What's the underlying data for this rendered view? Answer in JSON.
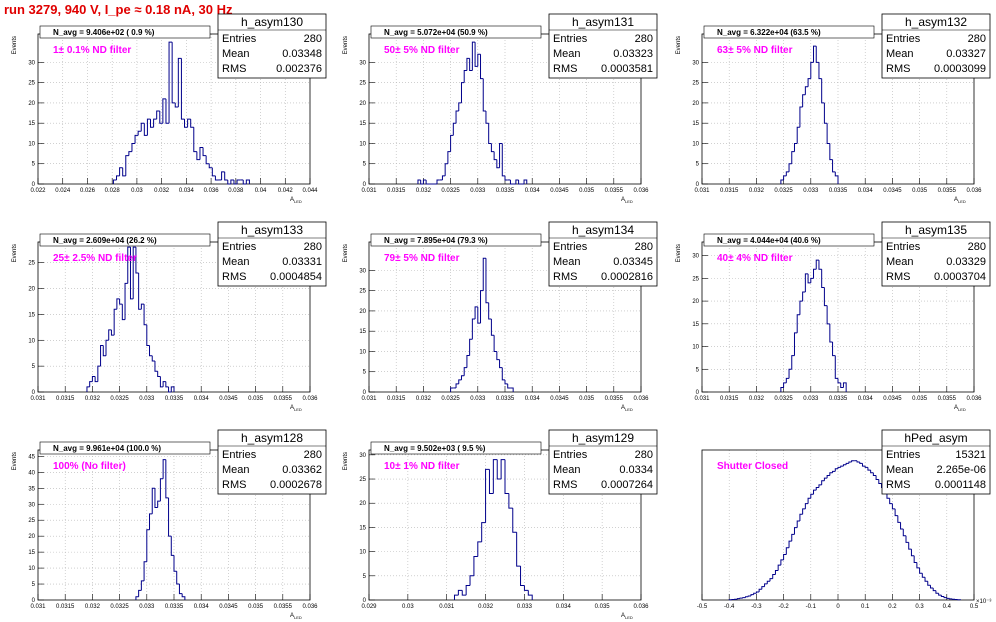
{
  "run_title": "run 3279,   940 V, I_pe ≈ 0.18 nA,  30 Hz",
  "colors": {
    "line": "#00008b",
    "note": "#ff00ff",
    "title": "#e00000",
    "grid": "#b4b4b4"
  },
  "chart_data": [
    {
      "type": "bar",
      "name": "h_asym130",
      "stats": {
        "entries_label": "Entries",
        "entries": "280",
        "mean_label": "Mean",
        "mean": "0.03348",
        "rms_label": "RMS",
        "rms": "0.002376"
      },
      "navg": "N_avg = 9.406e+02 ( 0.9 %)",
      "note": "1± 0.1% ND filter",
      "xlabel": "A_LED",
      "ylabel": "Events",
      "xlim": [
        0.022,
        0.044
      ],
      "ylim": [
        0,
        37
      ],
      "xticks": [
        "0.022",
        "0.024",
        "0.026",
        "0.028",
        "0.03",
        "0.032",
        "0.034",
        "0.036",
        "0.038",
        "0.04",
        "0.042",
        "0.044"
      ],
      "yticks": [
        0,
        5,
        10,
        15,
        20,
        25,
        30
      ],
      "bins": {
        "start": 0.0281,
        "width": 0.00025,
        "values": [
          1,
          2,
          4,
          2,
          7,
          8,
          10,
          12,
          13,
          15,
          12,
          16,
          14,
          16,
          18,
          15,
          21,
          15,
          35,
          20,
          19,
          31,
          16,
          14,
          16,
          14,
          8,
          6,
          9,
          7,
          5,
          4,
          2,
          1,
          1,
          3,
          1,
          0,
          1,
          0,
          1,
          1,
          0,
          1
        ]
      }
    },
    {
      "type": "bar",
      "name": "h_asym131",
      "stats": {
        "entries_label": "Entries",
        "entries": "280",
        "mean_label": "Mean",
        "mean": "0.03323",
        "rms_label": "RMS",
        "rms": "0.0003581"
      },
      "navg": "N_avg = 5.072e+04 (50.9 %)",
      "note": "50± 5% ND filter",
      "xlabel": "A_LED",
      "ylabel": "Events",
      "xlim": [
        0.031,
        0.036
      ],
      "ylim": [
        0,
        37
      ],
      "xticks": [
        "0.031",
        "0.0315",
        "0.032",
        "0.0325",
        "0.033",
        "0.0335",
        "0.034",
        "0.0345",
        "0.035",
        "0.0355",
        "0.036"
      ],
      "yticks": [
        0,
        5,
        10,
        15,
        20,
        25,
        30
      ],
      "bins": {
        "start": 0.0319,
        "width": 5e-05,
        "values": [
          1,
          0,
          1,
          0,
          0,
          0,
          0,
          1,
          1,
          2,
          5,
          8,
          12,
          15,
          18,
          20,
          25,
          28,
          31,
          28,
          35,
          29,
          32,
          26,
          18,
          15,
          10,
          8,
          6,
          4,
          10,
          2,
          1,
          1,
          0,
          0,
          1,
          0,
          0,
          1
        ]
      }
    },
    {
      "type": "bar",
      "name": "h_asym132",
      "stats": {
        "entries_label": "Entries",
        "entries": "280",
        "mean_label": "Mean",
        "mean": "0.03327",
        "rms_label": "RMS",
        "rms": "0.0003099"
      },
      "navg": "N_avg = 6.322e+04 (63.5 %)",
      "note": "63± 5% ND filter",
      "xlabel": "A_LED",
      "ylabel": "Events",
      "xlim": [
        0.031,
        0.036
      ],
      "ylim": [
        0,
        37
      ],
      "xticks": [
        "0.031",
        "0.0315",
        "0.032",
        "0.0325",
        "0.033",
        "0.0335",
        "0.034",
        "0.0345",
        "0.035",
        "0.0355",
        "0.036"
      ],
      "yticks": [
        0,
        5,
        10,
        15,
        20,
        25,
        30
      ],
      "bins": {
        "start": 0.03245,
        "width": 5e-05,
        "values": [
          1,
          2,
          3,
          5,
          8,
          10,
          14,
          19,
          22,
          24,
          26,
          30,
          34,
          30,
          26,
          20,
          15,
          10,
          6,
          3,
          2
        ]
      }
    },
    {
      "type": "bar",
      "name": "h_asym133",
      "stats": {
        "entries_label": "Entries",
        "entries": "280",
        "mean_label": "Mean",
        "mean": "0.03331",
        "rms_label": "RMS",
        "rms": "0.0004854"
      },
      "navg": "N_avg = 2.609e+04 (26.2 %)",
      "note": "25± 2.5% ND filter",
      "xlabel": "A_LED",
      "ylabel": "Events",
      "xlim": [
        0.031,
        0.036
      ],
      "ylim": [
        0,
        29
      ],
      "xticks": [
        "0.031",
        "0.0315",
        "0.032",
        "0.0325",
        "0.033",
        "0.0335",
        "0.034",
        "0.0345",
        "0.035",
        "0.0355",
        "0.036"
      ],
      "yticks": [
        0,
        5,
        10,
        15,
        20,
        25
      ],
      "bins": {
        "start": 0.0319,
        "width": 5e-05,
        "values": [
          1,
          2,
          3,
          2,
          5,
          9,
          7,
          10,
          12,
          11,
          16,
          18,
          17,
          14,
          21,
          28,
          18,
          28,
          23,
          16,
          17,
          13,
          9,
          7,
          6,
          4,
          3,
          1,
          2,
          1,
          0,
          1
        ]
      }
    },
    {
      "type": "bar",
      "name": "h_asym134",
      "stats": {
        "entries_label": "Entries",
        "entries": "280",
        "mean_label": "Mean",
        "mean": "0.03345",
        "rms_label": "RMS",
        "rms": "0.0002816"
      },
      "navg": "N_avg = 7.895e+04 (79.3 %)",
      "note": "79± 5% ND filter",
      "xlabel": "A_LED",
      "ylabel": "Events",
      "xlim": [
        0.031,
        0.036
      ],
      "ylim": [
        0,
        37
      ],
      "xticks": [
        "0.031",
        "0.0315",
        "0.032",
        "0.0325",
        "0.033",
        "0.0335",
        "0.034",
        "0.0345",
        "0.035",
        "0.0355",
        "0.036"
      ],
      "yticks": [
        0,
        5,
        10,
        15,
        20,
        25,
        30
      ],
      "bins": {
        "start": 0.0325,
        "width": 5e-05,
        "values": [
          1,
          1,
          2,
          3,
          4,
          6,
          9,
          13,
          18,
          21,
          17,
          25,
          33,
          22,
          18,
          14,
          10,
          8,
          6,
          3,
          2,
          1,
          1
        ]
      }
    },
    {
      "type": "bar",
      "name": "h_asym135",
      "stats": {
        "entries_label": "Entries",
        "entries": "280",
        "mean_label": "Mean",
        "mean": "0.03329",
        "rms_label": "RMS",
        "rms": "0.0003704"
      },
      "navg": "N_avg = 4.044e+04 (40.6 %)",
      "note": "40± 4% ND filter",
      "xlabel": "A_LED",
      "ylabel": "Events",
      "xlim": [
        0.031,
        0.036
      ],
      "ylim": [
        0,
        33
      ],
      "xticks": [
        "0.031",
        "0.0315",
        "0.032",
        "0.0325",
        "0.033",
        "0.0335",
        "0.034",
        "0.0345",
        "0.035",
        "0.0355",
        "0.036"
      ],
      "yticks": [
        0,
        5,
        10,
        15,
        20,
        25,
        30
      ],
      "bins": {
        "start": 0.03245,
        "width": 5e-05,
        "values": [
          1,
          2,
          3,
          5,
          8,
          13,
          17,
          20,
          22,
          26,
          24,
          25,
          27,
          29,
          27,
          23,
          19,
          15,
          11,
          8,
          3,
          2,
          1,
          2
        ]
      }
    },
    {
      "type": "bar",
      "name": "h_asym128",
      "stats": {
        "entries_label": "Entries",
        "entries": "280",
        "mean_label": "Mean",
        "mean": "0.03362",
        "rms_label": "RMS",
        "rms": "0.0002678"
      },
      "navg": "N_avg = 9.961e+04 (100.0 %)",
      "note": "100% (No filter)",
      "xlabel": "A_LED",
      "ylabel": "Events",
      "xlim": [
        0.031,
        0.036
      ],
      "ylim": [
        0,
        47
      ],
      "xticks": [
        "0.031",
        "0.0315",
        "0.032",
        "0.0325",
        "0.033",
        "0.0335",
        "0.034",
        "0.0345",
        "0.035",
        "0.0355",
        "0.036"
      ],
      "yticks": [
        0,
        5,
        10,
        15,
        20,
        25,
        30,
        35,
        40,
        45
      ],
      "bins": {
        "start": 0.0328,
        "width": 5e-05,
        "values": [
          1,
          3,
          6,
          12,
          22,
          27,
          35,
          29,
          31,
          38,
          44,
          32,
          20,
          14,
          9,
          5,
          2,
          1
        ]
      }
    },
    {
      "type": "bar",
      "name": "h_asym129",
      "stats": {
        "entries_label": "Entries",
        "entries": "280",
        "mean_label": "Mean",
        "mean": "0.0334",
        "rms_label": "RMS",
        "rms": "0.0007264"
      },
      "navg": "N_avg = 9.502e+03 ( 9.5 %)",
      "note": "10± 1% ND filter",
      "xlabel": "A_LED",
      "ylabel": "Events",
      "xlim": [
        0.029,
        0.036
      ],
      "ylim": [
        0,
        31
      ],
      "xticks": [
        "0.029",
        "0.03",
        "0.031",
        "0.032",
        "0.033",
        "0.034",
        "0.035",
        "0.036"
      ],
      "yticks": [
        0,
        5,
        10,
        15,
        20,
        25,
        30
      ],
      "bins": {
        "start": 0.0312,
        "width": 0.0001,
        "values": [
          1,
          2,
          1,
          3,
          5,
          9,
          12,
          16,
          27,
          22,
          29,
          25,
          29,
          22,
          19,
          14,
          7,
          3,
          2,
          1
        ]
      }
    },
    {
      "type": "bar",
      "name": "hPed_asym",
      "stats": {
        "entries_label": "Entries",
        "entries": "15321",
        "mean_label": "Mean",
        "mean": "2.265e-06",
        "rms_label": "RMS",
        "rms": "0.0001148"
      },
      "navg": "",
      "note": "Shutter Closed",
      "xlabel": "",
      "ylabel": "",
      "exponent": "×10⁻³",
      "xlim": [
        -0.5,
        0.5
      ],
      "ylim": [
        0,
        560
      ],
      "xticks": [
        "-0.5",
        "-0.4",
        "-0.3",
        "-0.2",
        "-0.1",
        "0",
        "0.1",
        "0.2",
        "0.3",
        "0.4",
        "0.5"
      ],
      "yticks": [],
      "bins": {
        "start": -0.4,
        "width": 0.01,
        "values": [
          1,
          2,
          3,
          5,
          7,
          9,
          12,
          15,
          20,
          25,
          30,
          40,
          50,
          60,
          70,
          80,
          95,
          110,
          130,
          150,
          170,
          195,
          220,
          245,
          270,
          295,
          320,
          340,
          360,
          380,
          395,
          410,
          420,
          430,
          445,
          455,
          465,
          475,
          480,
          490,
          495,
          500,
          505,
          510,
          515,
          520,
          520,
          515,
          510,
          500,
          495,
          485,
          475,
          465,
          450,
          435,
          420,
          400,
          380,
          360,
          340,
          315,
          290,
          265,
          240,
          215,
          190,
          165,
          140,
          120,
          100,
          85,
          70,
          55,
          45,
          35,
          25,
          18,
          13,
          9,
          6,
          4,
          3,
          2,
          1
        ]
      }
    }
  ]
}
